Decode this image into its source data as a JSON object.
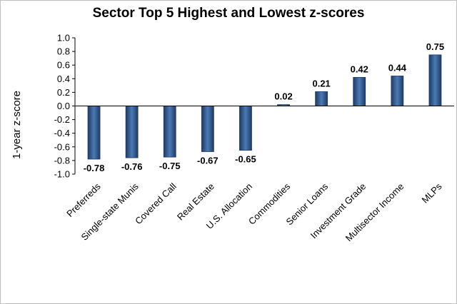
{
  "chart_data": {
    "type": "bar",
    "title": "Sector Top 5 Highest and Lowest z-scores",
    "ylabel": "1-year z-score",
    "xlabel": "",
    "categories": [
      "Preferreds",
      "Single-state Munis",
      "Covered Call",
      "Real Estate",
      "U.S. Allocation",
      "Commodities",
      "Senior Loans",
      "Investment Grade",
      "Multisector Income",
      "MLPs"
    ],
    "values": [
      -0.78,
      -0.76,
      -0.75,
      -0.67,
      -0.65,
      0.02,
      0.21,
      0.42,
      0.44,
      0.75
    ],
    "data_labels": [
      "-0.78",
      "-0.76",
      "-0.75",
      "-0.67",
      "-0.65",
      "0.02",
      "0.21",
      "0.42",
      "0.44",
      "0.75"
    ],
    "ylim": [
      -1.0,
      1.0
    ],
    "yticks": [
      "1.0",
      "0.8",
      "0.6",
      "0.4",
      "0.2",
      "0.0",
      "-0.2",
      "-0.4",
      "-0.6",
      "-0.8",
      "-1.0"
    ],
    "ytick_values": [
      1.0,
      0.8,
      0.6,
      0.4,
      0.2,
      0.0,
      -0.2,
      -0.4,
      -0.6,
      -0.8,
      -1.0
    ],
    "grid": false,
    "legend": "none",
    "colors": {
      "bar_dark": "#1f3b63",
      "bar_light": "#5b8cc8",
      "axis": "#000000"
    }
  }
}
